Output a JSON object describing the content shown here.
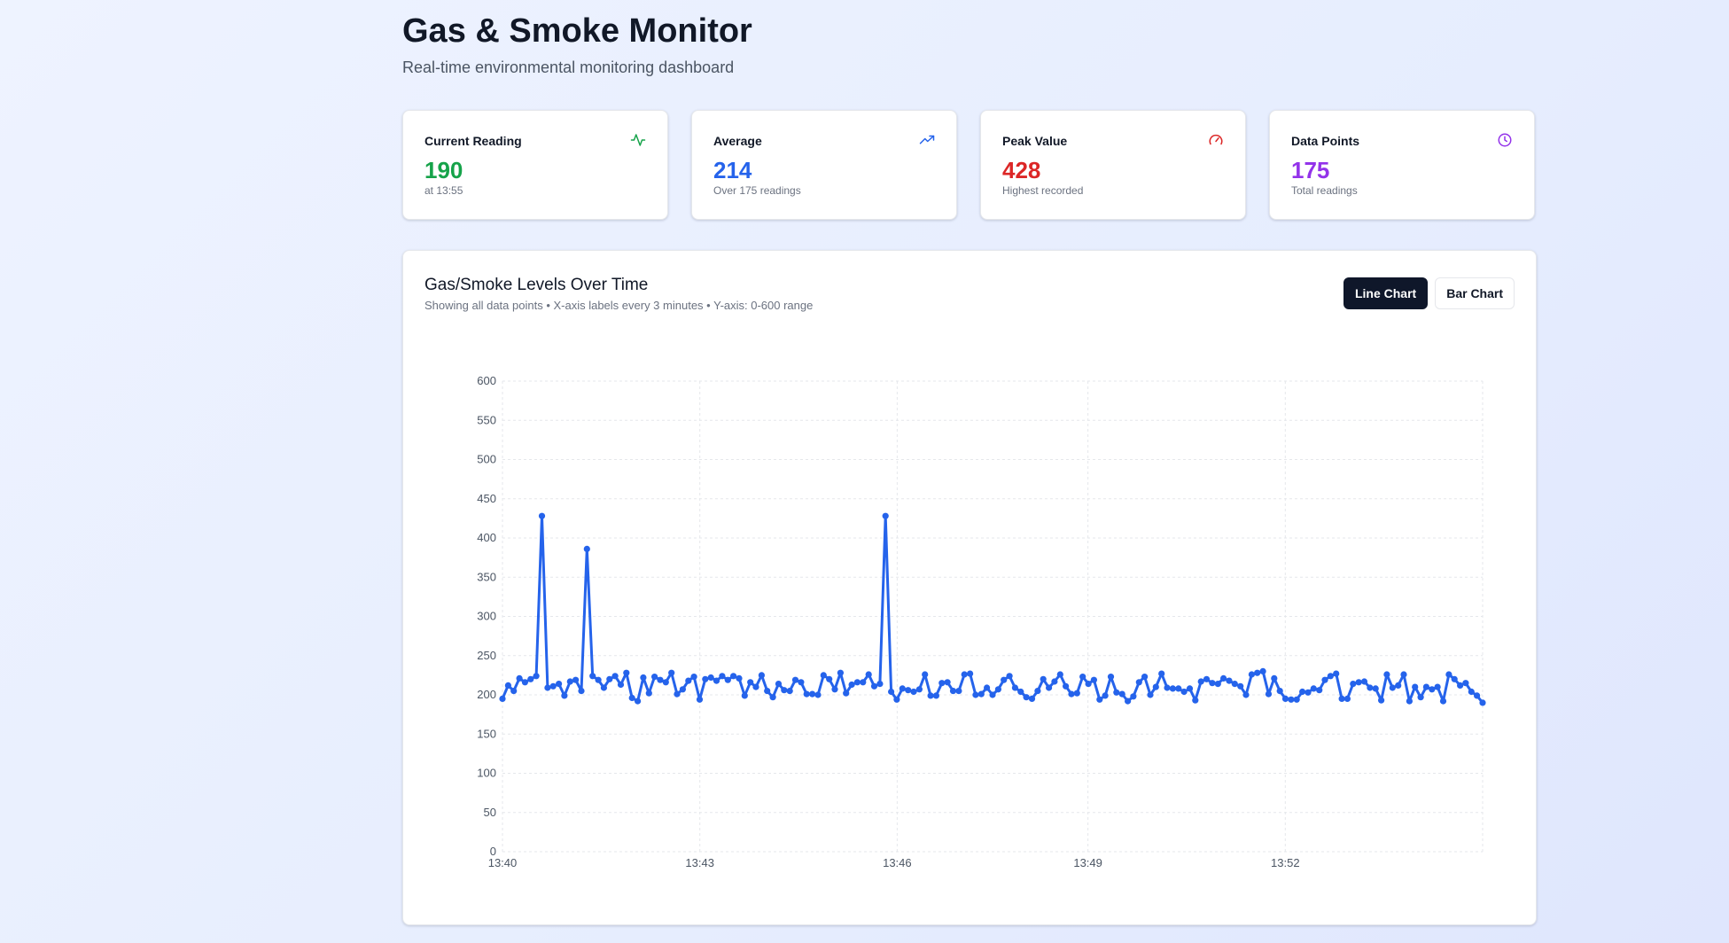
{
  "header": {
    "title": "Gas & Smoke Monitor",
    "subtitle": "Real-time environmental monitoring dashboard"
  },
  "stats": [
    {
      "label": "Current Reading",
      "value": "190",
      "sub": "at 13:55",
      "color": "#16a34a",
      "icon": "activity-icon"
    },
    {
      "label": "Average",
      "value": "214",
      "sub": "Over 175 readings",
      "color": "#2563eb",
      "icon": "trending-up-icon"
    },
    {
      "label": "Peak Value",
      "value": "428",
      "sub": "Highest recorded",
      "color": "#dc2626",
      "icon": "gauge-icon"
    },
    {
      "label": "Data Points",
      "value": "175",
      "sub": "Total readings",
      "color": "#9333ea",
      "icon": "clock-icon"
    }
  ],
  "chart": {
    "title": "Gas/Smoke Levels Over Time",
    "description": "Showing all data points • X-axis labels every 3 minutes • Y-axis: 0-600 range",
    "buttons": {
      "line": "Line Chart",
      "bar": "Bar Chart"
    },
    "active_button": "line"
  },
  "chart_data": {
    "type": "line",
    "title": "Gas/Smoke Levels Over Time",
    "xlabel": "",
    "ylabel": "",
    "ylim": [
      0,
      600
    ],
    "yticks": [
      0,
      50,
      100,
      150,
      200,
      250,
      300,
      350,
      400,
      450,
      500,
      550,
      600
    ],
    "xlim_minutes": [
      0,
      14.9
    ],
    "xticks": [
      {
        "label": "13:40",
        "minute": 0
      },
      {
        "label": "13:43",
        "minute": 3
      },
      {
        "label": "13:46",
        "minute": 6
      },
      {
        "label": "13:49",
        "minute": 8.9
      },
      {
        "label": "13:52",
        "minute": 11.9
      }
    ],
    "grid": true,
    "line_color": "#2563eb",
    "series": [
      {
        "values": [
          195,
          212,
          205,
          221,
          216,
          220,
          224,
          428,
          209,
          211,
          214,
          199,
          217,
          219,
          205,
          386,
          224,
          219,
          209,
          220,
          224,
          213,
          228,
          196,
          192,
          222,
          202,
          223,
          219,
          216,
          228,
          201,
          207,
          218,
          223,
          194,
          220,
          222,
          218,
          224,
          219,
          224,
          221,
          199,
          216,
          210,
          225,
          205,
          197,
          214,
          206,
          205,
          219,
          216,
          201,
          201,
          200,
          225,
          220,
          207,
          228,
          202,
          213,
          216,
          216,
          226,
          211,
          214,
          428,
          204,
          194,
          208,
          206,
          204,
          207,
          226,
          199,
          199,
          215,
          216,
          205,
          205,
          226,
          227,
          200,
          201,
          209,
          200,
          207,
          219,
          224,
          209,
          204,
          197,
          195,
          205,
          220,
          209,
          217,
          226,
          211,
          201,
          202,
          223,
          214,
          219,
          194,
          199,
          223,
          203,
          201,
          192,
          198,
          216,
          223,
          200,
          210,
          227,
          209,
          208,
          208,
          204,
          208,
          193,
          217,
          220,
          215,
          214,
          221,
          218,
          214,
          211,
          200,
          226,
          228,
          230,
          201,
          221,
          205,
          195,
          194,
          194,
          204,
          203,
          208,
          206,
          219,
          224,
          227,
          195,
          195,
          214,
          216,
          217,
          209,
          208,
          193,
          226,
          209,
          212,
          226,
          192,
          210,
          197,
          210,
          207,
          210,
          192,
          226,
          220,
          212,
          215,
          204,
          199,
          190
        ]
      }
    ]
  }
}
